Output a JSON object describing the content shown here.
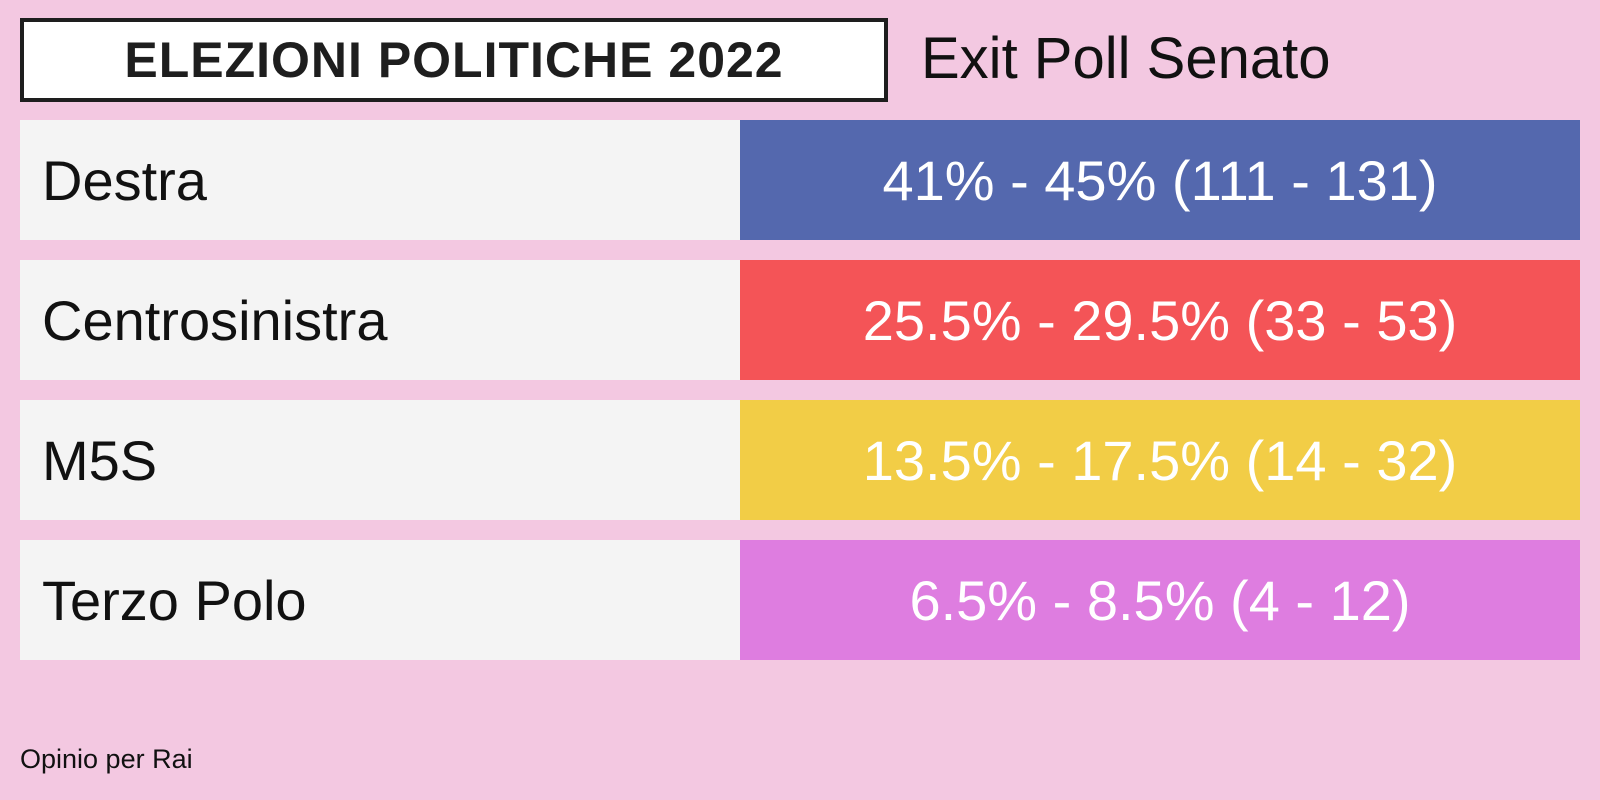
{
  "header": {
    "badge": "ELEZIONI POLITICHE 2022",
    "title": "Exit Poll Senato"
  },
  "table": {
    "rows": [
      {
        "party": "Destra",
        "result": "41% - 45% (111 - 131)",
        "color": "#5468ae"
      },
      {
        "party": "Centrosinistra",
        "result": "25.5% - 29.5% (33 - 53)",
        "color": "#f45457"
      },
      {
        "party": "M5S",
        "result": "13.5% - 17.5% (14 - 32)",
        "color": "#f2cd46"
      },
      {
        "party": "Terzo Polo",
        "result": "6.5% - 8.5% (4 - 12)",
        "color": "#de7de0"
      }
    ]
  },
  "footer": {
    "source": "Opinio per Rai"
  }
}
